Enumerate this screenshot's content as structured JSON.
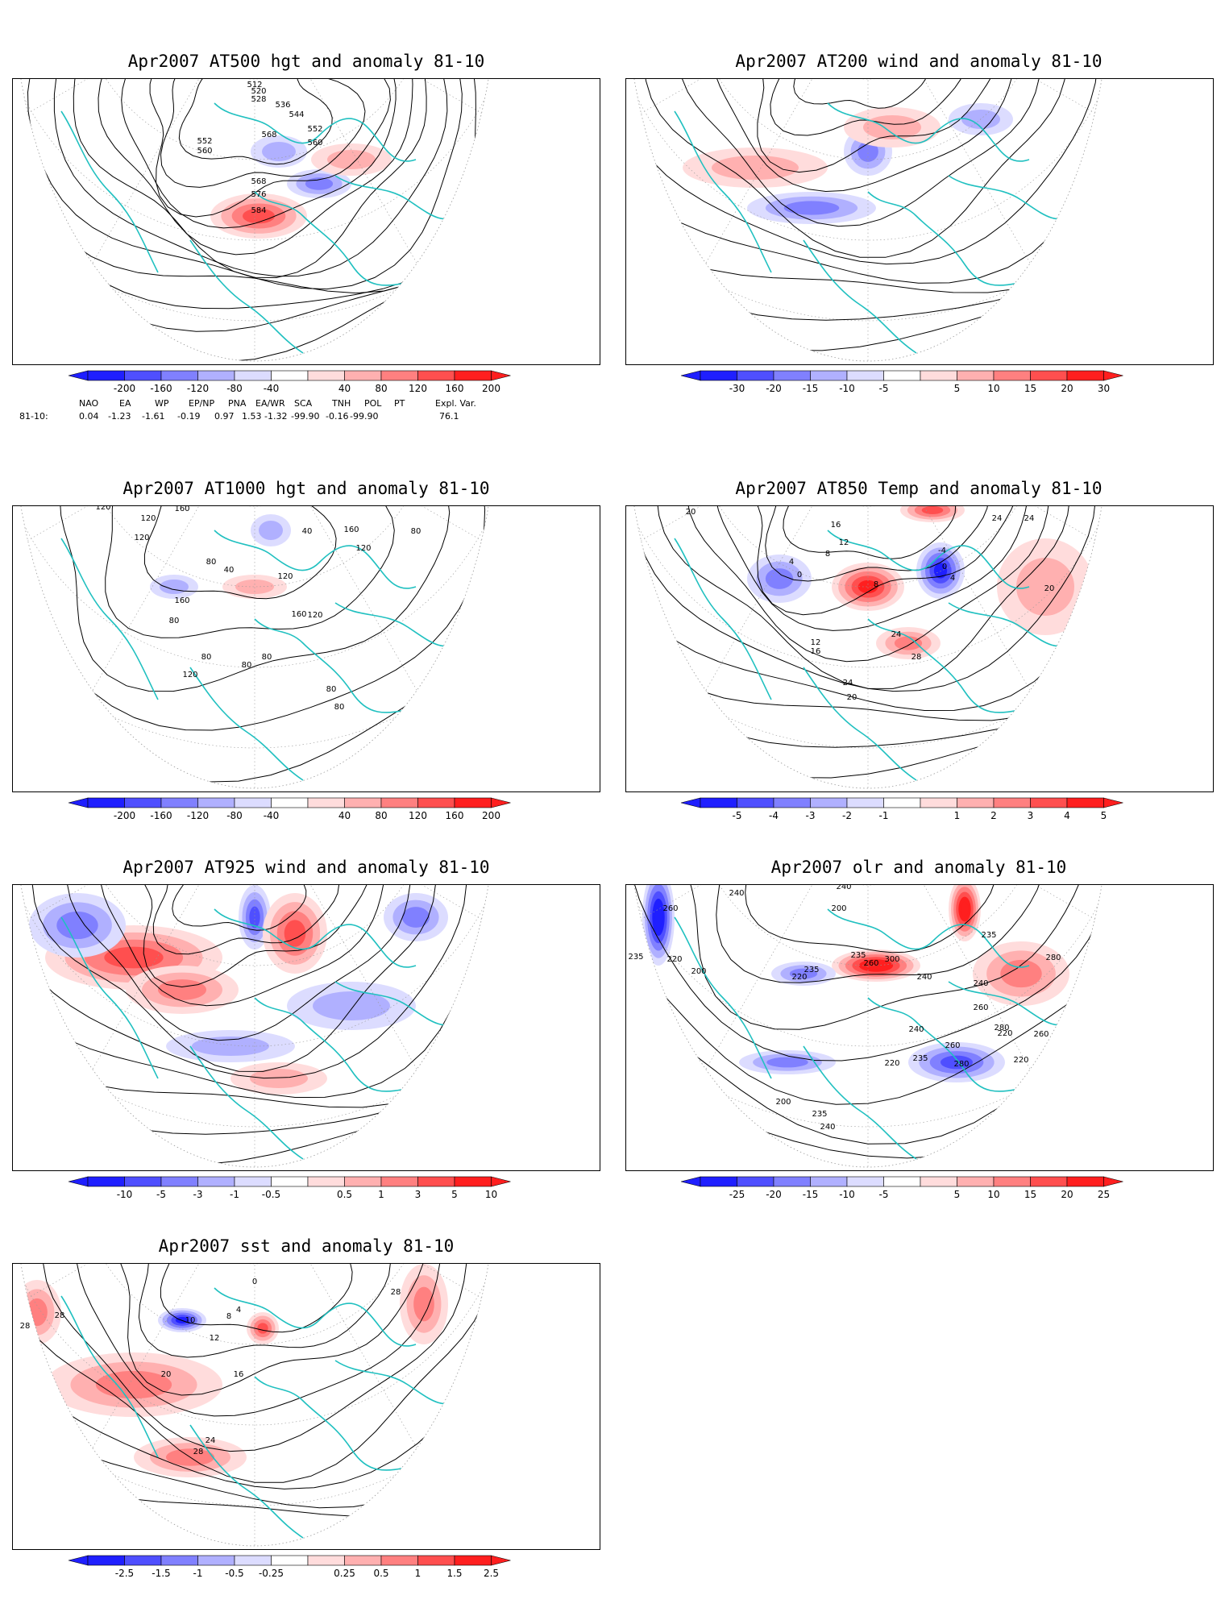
{
  "panels": [
    {
      "id": "p1",
      "title": "Apr2007 AT500 hgt and anomaly 81-10",
      "colorbar": [
        "-200",
        "-160",
        "-120",
        "-80",
        "-40",
        "40",
        "80",
        "120",
        "160",
        "200"
      ],
      "contour_labels": [
        "512",
        "520",
        "528",
        "536",
        "544",
        "552",
        "552",
        "560",
        "560",
        "568",
        "568",
        "576",
        "584"
      ],
      "indices": {
        "headers": [
          "NAO",
          "EA",
          "WP",
          "EP/NP",
          "PNA",
          "EA/WR",
          "SCA",
          "TNH",
          "POL",
          "PT",
          "Expl. Var."
        ],
        "row_label": "81-10:",
        "values": [
          "0.04",
          "-1.23",
          "-1.61",
          "-0.19",
          "0.97",
          "1.53",
          "-1.32",
          "-99.90",
          "-0.16",
          "-99.90",
          "76.1"
        ]
      }
    },
    {
      "id": "p2",
      "title": "Apr2007 AT200 wind and anomaly 81-10",
      "colorbar": [
        "-30",
        "-20",
        "-15",
        "-10",
        "-5",
        "5",
        "10",
        "15",
        "20",
        "30"
      ],
      "contour_labels": []
    },
    {
      "id": "p3",
      "title": "Apr2007 AT1000 hgt and anomaly 81-10",
      "colorbar": [
        "-200",
        "-160",
        "-120",
        "-80",
        "-40",
        "40",
        "80",
        "120",
        "160",
        "200"
      ],
      "contour_labels": [
        "120",
        "120",
        "160",
        "120",
        "80",
        "40",
        "120",
        "160",
        "80",
        "80",
        "160",
        "120",
        "80",
        "40",
        "120",
        "160",
        "80",
        "80",
        "80",
        "80",
        "120"
      ]
    },
    {
      "id": "p4",
      "title": "Apr2007 AT850 Temp and anomaly 81-10",
      "colorbar": [
        "-5",
        "-4",
        "-3",
        "-2",
        "-1",
        "1",
        "2",
        "3",
        "4",
        "5"
      ],
      "contour_labels": [
        "20",
        "16",
        "12",
        "8",
        "4",
        "0",
        "-4",
        "4",
        "8",
        "0",
        "24",
        "24",
        "20",
        "12",
        "16",
        "24",
        "28",
        "24",
        "20"
      ]
    },
    {
      "id": "p5",
      "title": "Apr2007 AT925 wind and anomaly 81-10",
      "colorbar": [
        "-10",
        "-5",
        "-3",
        "-1",
        "-0.5",
        "0.5",
        "1",
        "3",
        "5",
        "10"
      ],
      "contour_labels": []
    },
    {
      "id": "p6",
      "title": "Apr2007 olr and anomaly 81-10",
      "colorbar": [
        "-25",
        "-20",
        "-15",
        "-10",
        "-5",
        "5",
        "10",
        "15",
        "20",
        "25"
      ],
      "contour_labels": [
        "260",
        "235",
        "220",
        "200",
        "240",
        "235",
        "220",
        "240",
        "200",
        "235",
        "240",
        "260",
        "300",
        "235",
        "240",
        "260",
        "280",
        "220",
        "260",
        "280",
        "240",
        "235",
        "220",
        "260",
        "280",
        "200",
        "220",
        "240",
        "235"
      ]
    },
    {
      "id": "p7",
      "title": "Apr2007 sst and anomaly 81-10",
      "colorbar": [
        "-2.5",
        "-1.5",
        "-1",
        "-0.5",
        "-0.25",
        "0.25",
        "0.5",
        "1",
        "1.5",
        "2.5"
      ],
      "contour_labels": [
        "28",
        "28",
        "20",
        "16",
        "12",
        "10",
        "8",
        "4",
        "0",
        "24",
        "28",
        "28"
      ]
    }
  ],
  "colors": {
    "blues": [
      "#1f1fff",
      "#4f4fff",
      "#8080ff",
      "#b0b0ff",
      "#dcdcff"
    ],
    "reds": [
      "#ffdcdc",
      "#ffb0b0",
      "#ff8080",
      "#ff4f4f",
      "#ff1f1f"
    ],
    "coast": "#20c0c0",
    "contour": "#000000",
    "grid": "#999999"
  }
}
